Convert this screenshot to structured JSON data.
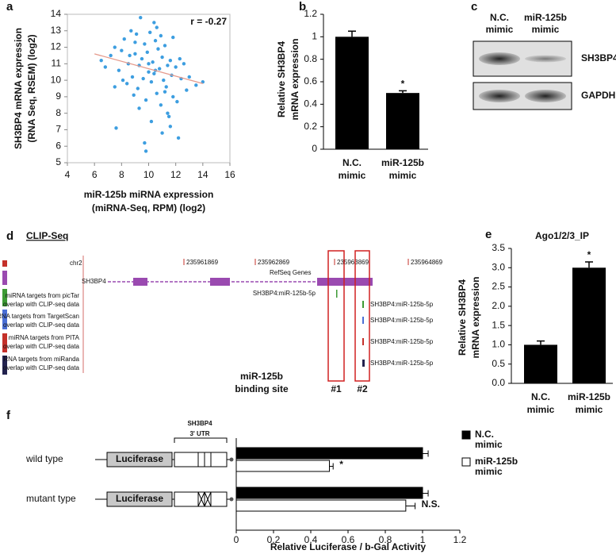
{
  "chart_data": [
    {
      "type": "scatter",
      "panel": "a",
      "x": [
        6.5,
        6.8,
        7.2,
        7.5,
        7.8,
        8.0,
        8.2,
        8.4,
        8.5,
        8.7,
        8.8,
        9.0,
        9.1,
        9.2,
        9.3,
        9.4,
        9.5,
        9.6,
        9.7,
        9.8,
        9.9,
        10.0,
        10.1,
        10.2,
        10.3,
        10.4,
        10.5,
        10.6,
        10.7,
        10.8,
        10.9,
        11.0,
        11.1,
        11.2,
        11.3,
        11.4,
        11.5,
        11.6,
        11.7,
        11.8,
        12.0,
        12.2,
        12.4,
        12.6,
        12.8,
        13.0,
        13.5,
        14.0,
        7.6,
        8.1,
        8.9,
        9.3,
        9.8,
        10.2,
        10.6,
        11.0,
        11.4,
        11.8,
        12.3,
        9.0,
        10.0,
        10.5,
        11.2,
        7.5,
        9.7,
        10.9,
        12.1,
        8.6,
        10.4,
        11.6
      ],
      "y": [
        11.2,
        10.8,
        11.5,
        12.0,
        10.6,
        11.8,
        12.5,
        9.8,
        11.0,
        13.0,
        10.2,
        11.6,
        12.8,
        9.5,
        10.9,
        13.8,
        11.3,
        10.1,
        12.2,
        8.8,
        11.7,
        10.5,
        12.9,
        9.9,
        11.1,
        10.4,
        12.4,
        9.2,
        11.9,
        10.7,
        8.5,
        11.4,
        10.0,
        12.1,
        9.6,
        10.9,
        7.8,
        11.2,
        10.3,
        9.0,
        10.8,
        6.5,
        10.1,
        11.0,
        9.4,
        10.2,
        9.7,
        9.9,
        7.1,
        10.0,
        9.1,
        8.3,
        5.7,
        7.5,
        13.2,
        6.8,
        8.0,
        12.6,
        11.3,
        12.3,
        11.0,
        10.6,
        9.3,
        9.6,
        6.2,
        12.7,
        8.7,
        11.5,
        13.5,
        7.2
      ],
      "color": "#3d9ee0",
      "xlim": [
        4,
        16
      ],
      "xticks": [
        4,
        6,
        8,
        10,
        12,
        14,
        16
      ],
      "ylim": [
        5,
        14
      ],
      "yticks": [
        5,
        6,
        7,
        8,
        9,
        10,
        11,
        12,
        13,
        14
      ],
      "xlabel": [
        "miR-125b miRNA expression",
        "(miRNA-Seq, RPM) (log2)"
      ],
      "ylabel": [
        "SH3BP4 mRNA expression",
        "(RNA Seq, RSEM) (log2)"
      ],
      "annotation": "r = -0.27",
      "trendline": {
        "color": "#e59a8c",
        "x": [
          6,
          14
        ],
        "y": [
          11.6,
          9.8
        ]
      }
    },
    {
      "type": "bar",
      "panel": "b",
      "categories": [
        [
          "N.C.",
          "mimic"
        ],
        [
          "miR-125b",
          "mimic"
        ]
      ],
      "values": [
        1,
        0.5
      ],
      "errors": [
        0.05,
        0.02
      ],
      "color": "#000000",
      "ylim": [
        0,
        1.2
      ],
      "yticks": [
        0,
        0.2,
        0.4,
        0.6,
        0.8,
        1,
        1.2
      ],
      "ylabel": [
        "Relative SH3BP4",
        "mRNA expression"
      ],
      "annotations": [
        {
          "text": "*",
          "category": 1
        }
      ]
    },
    {
      "type": "bar",
      "panel": "e",
      "title": "Ago1/2/3_IP",
      "categories": [
        [
          "N.C.",
          "mimic"
        ],
        [
          "miR-125b",
          "mimic"
        ]
      ],
      "values": [
        1,
        3
      ],
      "errors": [
        0.1,
        0.15
      ],
      "color": "#000000",
      "ylim": [
        0,
        3.5
      ],
      "yticks": [
        {
          "value": 0,
          "label": "0.0"
        },
        0.5,
        {
          "value": 1,
          "label": "1.0"
        },
        1.5,
        {
          "value": 2,
          "label": "2.0"
        },
        2.5,
        {
          "value": 3,
          "label": "3.0"
        },
        3.5
      ],
      "ylabel": [
        "Relative SH3BP4",
        "mRNA expression"
      ],
      "annotations": [
        {
          "text": "*",
          "category": 1
        }
      ]
    },
    {
      "type": "barh",
      "panel": "f",
      "categories": [
        "wild type",
        "mutant type"
      ],
      "series": [
        {
          "name": [
            "N.C.",
            "mimic"
          ],
          "color": "#000000",
          "values": [
            1,
            1
          ],
          "errors": [
            0.03,
            0.03
          ]
        },
        {
          "name": [
            "miR-125b",
            "mimic"
          ],
          "color": "#ffffff",
          "values": [
            0.5,
            0.91
          ],
          "errors": [
            0.02,
            0.05
          ]
        }
      ],
      "xlim": [
        0,
        1.2
      ],
      "xticks": [
        0,
        0.2,
        0.4,
        0.6,
        0.8,
        1,
        1.2
      ],
      "xlabel": "Relative Luciferase / b-Gal Activity",
      "annotations": [
        {
          "text": "*",
          "series": 1,
          "category": 0
        },
        {
          "text": "N.S.",
          "series": 1,
          "category": 1
        }
      ],
      "construct": {
        "reporter": "Luciferase",
        "utr_label": [
          "SH3BP4",
          "3' UTR"
        ]
      }
    }
  ],
  "blot": {
    "panel": "c",
    "columns": [
      [
        "N.C.",
        "mimic"
      ],
      [
        "miR-125b",
        "mimic"
      ]
    ],
    "rows": [
      "SH3BP4",
      "GAPDH"
    ]
  },
  "genome": {
    "panel": "d",
    "title": "CLIP-Seq",
    "chrom": "chr2",
    "positions": [
      235961869,
      235962869,
      235963869,
      235964869
    ],
    "gene": "SH3BP4",
    "gene_track": "RefSeq Genes",
    "top_hit": "SH3BP4:miR-125b-5p",
    "tracks": [
      {
        "label": [
          "miRNA targets from picTar",
          "overlap with CLIP-seq data"
        ],
        "color": "#3c9a34",
        "hit": "SH3BP4:miR-125b-5p"
      },
      {
        "label": [
          "miRNA targets from TargetScan",
          "overlap with CLIP-seq data"
        ],
        "color": "#4a6fd6",
        "hit": "SH3BP4:miR-125b-5p"
      },
      {
        "label": [
          "miRNA targets from PITA",
          "overlap with CLIP-seq data"
        ],
        "color": "#c4302a",
        "hit": "SH3BP4:miR-125b-5p"
      },
      {
        "label": [
          "RNA targets from miRanda",
          "overlap with CLIP-seq data"
        ],
        "color": "#22224e",
        "hit": "SH3BP4:miR-125b-5p"
      }
    ],
    "site_label": [
      "miR-125b",
      "binding site"
    ],
    "sites": [
      "#1",
      "#2"
    ]
  }
}
